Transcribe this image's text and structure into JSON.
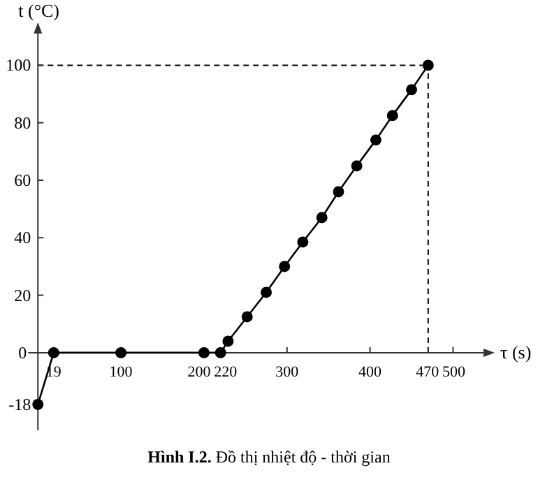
{
  "chart_data": {
    "type": "line",
    "title": "Hình I.2. Đồ thị nhiệt độ - thời gian",
    "xlabel": "τ (s)",
    "ylabel": "t (°C)",
    "x": [
      0,
      19,
      100,
      200,
      220,
      229,
      252,
      275,
      297,
      319,
      342,
      362,
      384,
      407,
      427,
      450,
      470
    ],
    "values": [
      -18,
      0,
      0,
      0,
      0,
      4,
      12.5,
      21,
      30,
      38.5,
      47,
      56,
      65,
      74,
      82.5,
      91.5,
      100
    ],
    "color": "#000000",
    "marker": "circle",
    "line_style": "solid",
    "grid": false,
    "xlim": [
      -12,
      540
    ],
    "ylim": [
      -27,
      112
    ],
    "xticks": [
      19,
      100,
      200,
      220,
      300,
      400,
      470,
      500
    ],
    "yticks": [
      -18,
      0,
      20,
      40,
      60,
      80,
      100
    ],
    "ref_lines": [
      {
        "axis": "x",
        "value": 470,
        "line_style": "dashed",
        "color": "#000000"
      },
      {
        "axis": "y",
        "value": 100,
        "line_style": "dashed",
        "color": "#000000"
      }
    ]
  }
}
